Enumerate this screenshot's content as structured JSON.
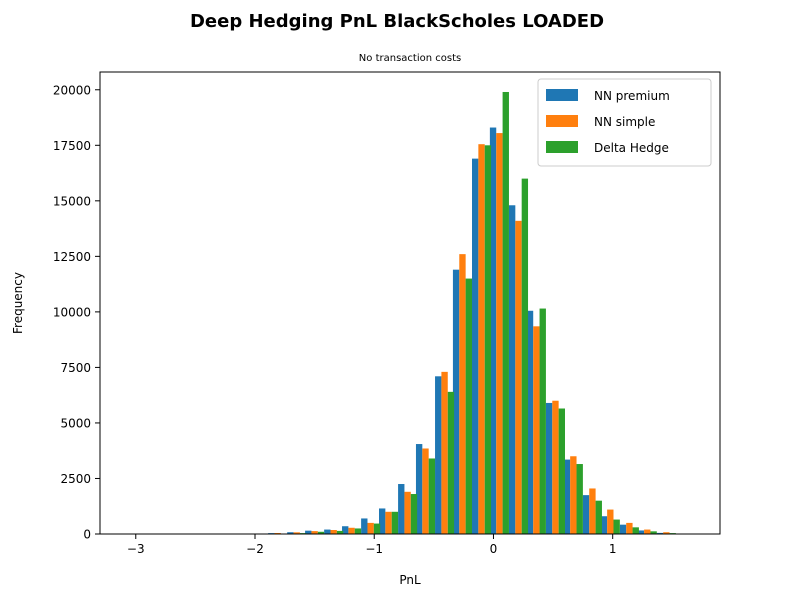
{
  "chart_data": {
    "type": "bar",
    "title": "Deep Hedging PnL BlackScholes LOADED",
    "subtitle": "No transaction costs",
    "xlabel": "PnL",
    "ylabel": "Frequency",
    "xlim": [
      -3.3,
      1.9
    ],
    "ylim": [
      0,
      20800
    ],
    "grid": false,
    "legend_position": "top-right",
    "x_ticks": [
      -3,
      -2,
      -1,
      0,
      1
    ],
    "x_tick_labels": [
      "−3",
      "−2",
      "−1",
      "0",
      "1"
    ],
    "y_ticks": [
      0,
      2500,
      5000,
      7500,
      10000,
      12500,
      15000,
      17500,
      20000
    ],
    "y_tick_labels": [
      "0",
      "2500",
      "5000",
      "7500",
      "10000",
      "12500",
      "15000",
      "17500",
      "20000"
    ],
    "x": [
      -3.05,
      -2.89,
      -2.74,
      -2.58,
      -2.43,
      -2.27,
      -2.12,
      -1.96,
      -1.81,
      -1.65,
      -1.5,
      -1.34,
      -1.19,
      -1.03,
      -0.88,
      -0.72,
      -0.57,
      -0.41,
      -0.26,
      -0.1,
      0.05,
      0.21,
      0.36,
      0.52,
      0.67,
      0.83,
      0.98,
      1.14,
      1.29,
      1.45
    ],
    "series": [
      {
        "name": "NN premium",
        "color": "#1f77b4",
        "values": [
          3,
          0,
          1,
          0,
          2,
          4,
          8,
          20,
          40,
          80,
          150,
          200,
          350,
          700,
          1150,
          2250,
          4050,
          7100,
          11900,
          16900,
          18300,
          14800,
          10050,
          5900,
          3350,
          1750,
          800,
          420,
          160,
          50
        ]
      },
      {
        "name": "NN simple",
        "color": "#ff7f0e",
        "values": [
          2,
          0,
          1,
          1,
          2,
          3,
          10,
          22,
          45,
          75,
          130,
          180,
          280,
          500,
          1000,
          1900,
          3850,
          7300,
          12600,
          17550,
          18050,
          14100,
          9350,
          6000,
          3500,
          2050,
          1100,
          500,
          200,
          80
        ]
      },
      {
        "name": "Delta Hedge",
        "color": "#2ca02c",
        "values": [
          0,
          0,
          0,
          0,
          0,
          0,
          0,
          0,
          0,
          40,
          100,
          140,
          250,
          470,
          1000,
          1800,
          3400,
          6400,
          11500,
          17500,
          19900,
          16000,
          10150,
          5650,
          3150,
          1500,
          650,
          300,
          120,
          40
        ]
      }
    ]
  }
}
